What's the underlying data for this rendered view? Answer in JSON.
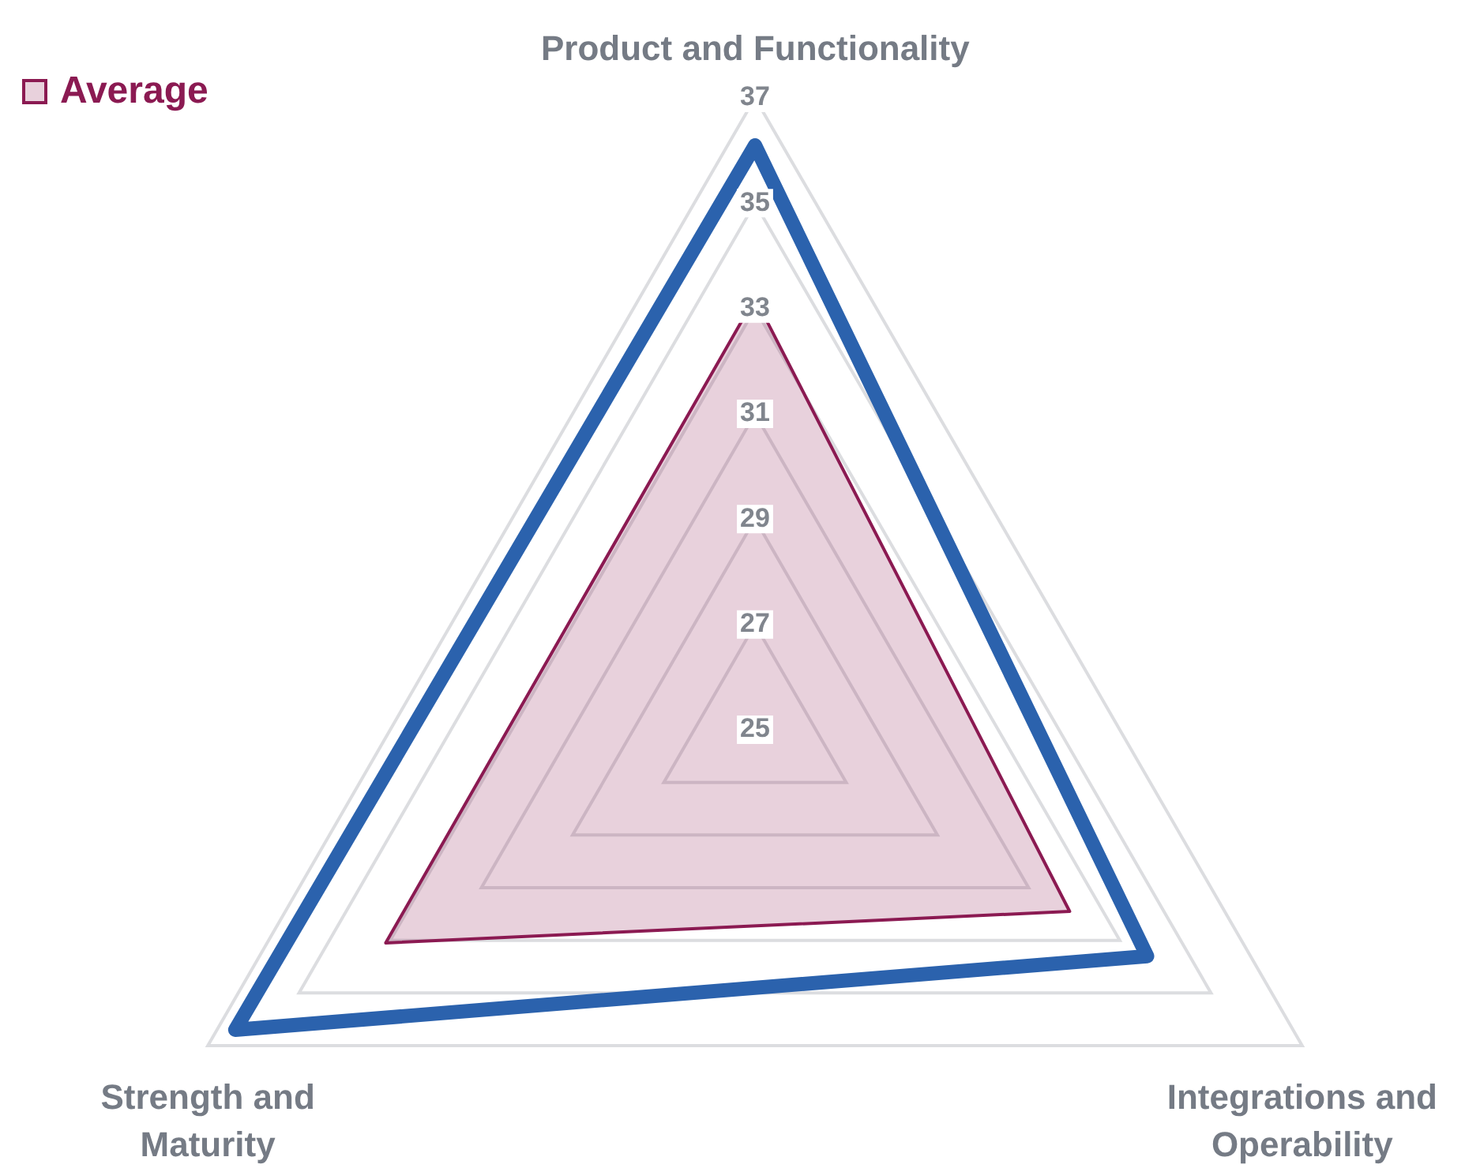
{
  "chart_data": {
    "type": "radar",
    "categories": [
      "Product and Functionality",
      "Integrations and Operability",
      "Strength and Maturity"
    ],
    "series": [
      {
        "color": "#2b62ad",
        "values": [
          36.1,
          33.6,
          36.4
        ]
      },
      {
        "name": "Average",
        "color": "#8b1a52",
        "values": [
          33.2,
          31.9,
          33.1
        ]
      }
    ],
    "ylim": [
      25,
      37
    ],
    "yticks": [
      25,
      27,
      29,
      31,
      33,
      35,
      37
    ],
    "legend": "top left",
    "grid": true
  }
}
